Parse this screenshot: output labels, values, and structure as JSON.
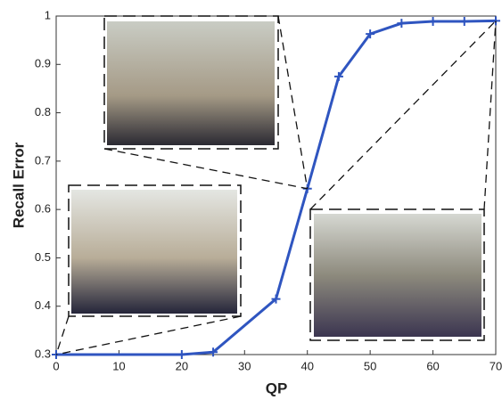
{
  "chart_data": {
    "type": "line",
    "xlabel": "QP",
    "ylabel": "Recall Error",
    "x": [
      0,
      20,
      25,
      35,
      40,
      45,
      50,
      55,
      60,
      65,
      70
    ],
    "series": [
      {
        "color": "#2f55c0",
        "values": [
          0.3,
          0.3,
          0.305,
          0.415,
          0.643,
          0.875,
          0.963,
          0.985,
          0.989,
          0.989,
          0.99
        ]
      }
    ],
    "xlim": [
      0,
      70
    ],
    "xticks": [
      0,
      10,
      20,
      30,
      40,
      50,
      60,
      70
    ],
    "ylim": [
      0.3,
      1
    ],
    "yticks": [
      0.3,
      0.4,
      0.5,
      0.6,
      0.7,
      0.8,
      0.9,
      1
    ]
  }
}
